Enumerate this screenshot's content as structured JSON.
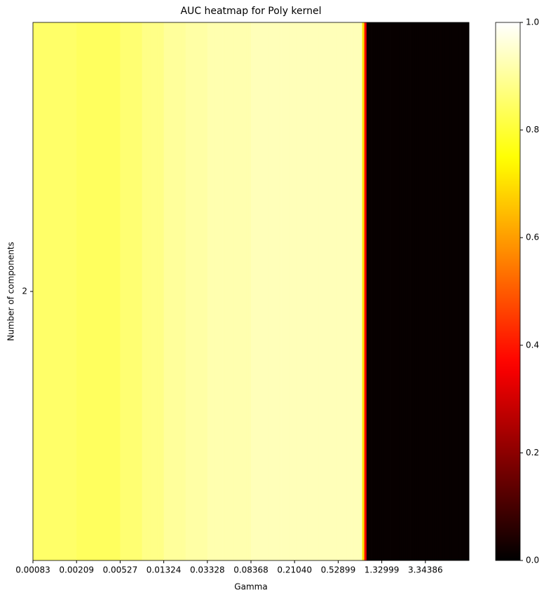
{
  "chart_data": {
    "type": "heatmap",
    "title": "AUC heatmap for Poly kernel",
    "x_label": "Gamma",
    "y_label": "Number of components",
    "colormap": "hot",
    "y_categories": [
      "2"
    ],
    "categories": [
      "0.00083",
      null,
      null,
      null,
      null,
      null,
      null,
      null,
      null,
      null,
      null,
      null,
      null,
      null,
      null,
      null,
      null,
      null,
      null,
      null,
      "0.00209",
      null,
      null,
      null,
      null,
      null,
      null,
      null,
      null,
      null,
      null,
      null,
      null,
      null,
      null,
      null,
      null,
      null,
      null,
      null,
      "0.00527",
      null,
      null,
      null,
      null,
      null,
      null,
      null,
      null,
      null,
      null,
      null,
      null,
      null,
      null,
      null,
      null,
      null,
      null,
      null,
      "0.01324",
      null,
      null,
      null,
      null,
      null,
      null,
      null,
      null,
      null,
      null,
      null,
      null,
      null,
      null,
      null,
      null,
      null,
      null,
      null,
      "0.03328",
      null,
      null,
      null,
      null,
      null,
      null,
      null,
      null,
      null,
      null,
      null,
      null,
      null,
      null,
      null,
      null,
      null,
      null,
      null,
      "0.08368",
      null,
      null,
      null,
      null,
      null,
      null,
      null,
      null,
      null,
      null,
      null,
      null,
      null,
      null,
      null,
      null,
      null,
      null,
      null,
      "0.21040",
      null,
      null,
      null,
      null,
      null,
      null,
      null,
      null,
      null,
      null,
      null,
      null,
      null,
      null,
      null,
      null,
      null,
      null,
      null,
      "0.52899",
      null,
      null,
      null,
      null,
      null,
      null,
      null,
      null,
      null,
      null,
      null,
      null,
      null,
      null,
      null,
      null,
      null,
      null,
      null,
      "1.32999",
      null,
      null,
      null,
      null,
      null,
      null,
      null,
      null,
      null,
      null,
      null,
      null,
      null,
      null,
      null,
      null,
      null,
      null,
      null,
      "3.34386",
      null,
      null,
      null,
      null,
      null,
      null,
      null,
      null,
      null,
      null,
      null,
      null,
      null,
      null,
      null,
      null,
      null,
      null,
      null
    ],
    "values": [
      [
        0.85,
        0.85,
        0.85,
        0.85,
        0.85,
        0.85,
        0.85,
        0.85,
        0.85,
        0.85,
        0.85,
        0.85,
        0.85,
        0.85,
        0.85,
        0.85,
        0.85,
        0.85,
        0.85,
        0.85,
        0.84,
        0.84,
        0.84,
        0.84,
        0.84,
        0.84,
        0.84,
        0.84,
        0.84,
        0.84,
        0.84,
        0.84,
        0.84,
        0.84,
        0.84,
        0.84,
        0.84,
        0.84,
        0.84,
        0.84,
        0.86,
        0.86,
        0.86,
        0.86,
        0.86,
        0.86,
        0.86,
        0.86,
        0.86,
        0.86,
        0.88,
        0.88,
        0.88,
        0.88,
        0.88,
        0.88,
        0.88,
        0.88,
        0.88,
        0.88,
        0.9,
        0.9,
        0.9,
        0.9,
        0.9,
        0.9,
        0.9,
        0.9,
        0.9,
        0.9,
        0.91,
        0.91,
        0.91,
        0.91,
        0.91,
        0.91,
        0.91,
        0.91,
        0.91,
        0.91,
        0.92,
        0.92,
        0.92,
        0.92,
        0.92,
        0.92,
        0.92,
        0.92,
        0.92,
        0.92,
        0.92,
        0.92,
        0.92,
        0.92,
        0.92,
        0.92,
        0.92,
        0.92,
        0.92,
        0.92,
        0.93,
        0.93,
        0.93,
        0.93,
        0.93,
        0.93,
        0.93,
        0.93,
        0.93,
        0.93,
        0.93,
        0.93,
        0.93,
        0.93,
        0.93,
        0.93,
        0.93,
        0.93,
        0.93,
        0.93,
        0.93,
        0.93,
        0.93,
        0.93,
        0.93,
        0.93,
        0.93,
        0.93,
        0.93,
        0.93,
        0.93,
        0.93,
        0.93,
        0.93,
        0.93,
        0.93,
        0.93,
        0.93,
        0.93,
        0.93,
        0.93,
        0.93,
        0.93,
        0.93,
        0.93,
        0.93,
        0.93,
        0.93,
        0.93,
        0.93,
        0.93,
        0.7,
        0.35,
        0.01,
        0.01,
        0.01,
        0.01,
        0.01,
        0.01,
        0.01,
        0.01,
        0.01,
        0.01,
        0.01,
        0.01,
        0.01,
        0.01,
        0.01,
        0.01,
        0.01,
        0.01,
        0.01,
        0.01,
        0.01,
        0.01,
        0.01,
        0.01,
        0.01,
        0.01,
        0.01,
        0.01,
        0.01,
        0.01,
        0.01,
        0.01,
        0.01,
        0.01,
        0.01,
        0.01,
        0.01,
        0.01,
        0.01,
        0.01,
        0.01,
        0.01,
        0.01,
        0.01,
        0.01,
        0.01,
        0.01
      ]
    ],
    "colorbar": {
      "lim": [
        0,
        1
      ],
      "ticks": [
        {
          "value": 0,
          "label": "0.0"
        },
        {
          "value": 0.2,
          "label": "0.2"
        },
        {
          "value": 0.4,
          "label": "0.4"
        },
        {
          "value": 0.6,
          "label": "0.6"
        },
        {
          "value": 0.8,
          "label": "0.8"
        },
        {
          "value": 1,
          "label": "1.0"
        }
      ]
    }
  }
}
